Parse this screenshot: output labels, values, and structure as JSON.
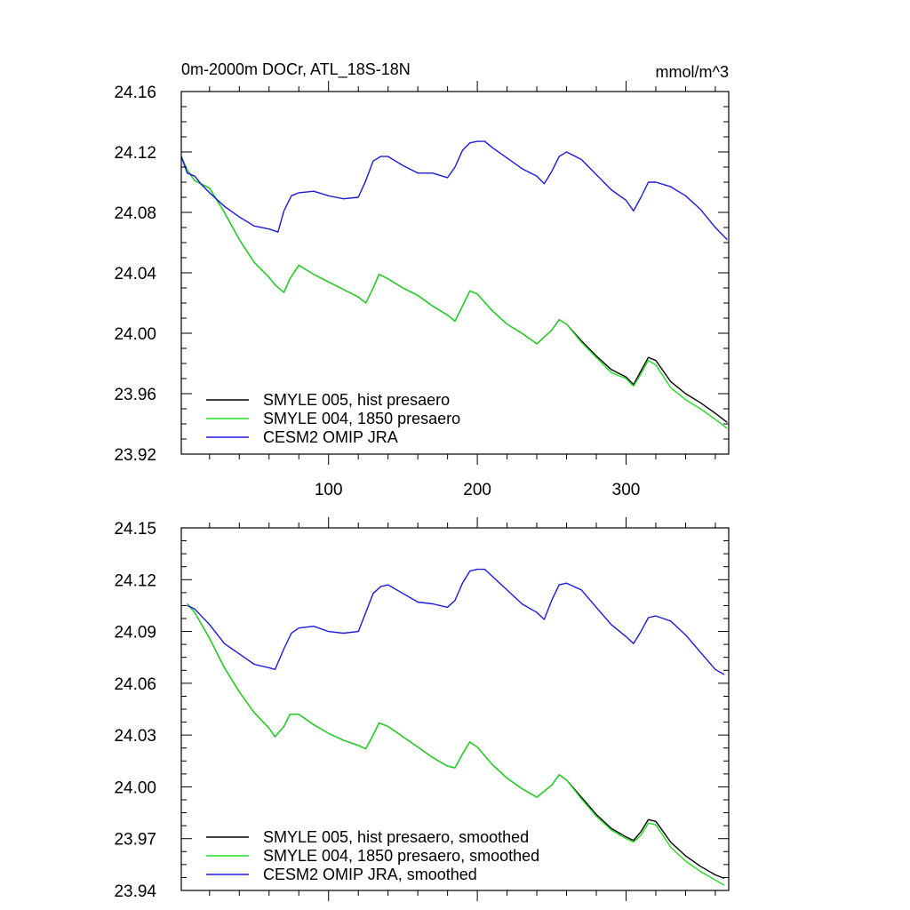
{
  "colors": {
    "black": "#000000",
    "green": "#22dd22",
    "blue": "#1a1adb"
  },
  "chart_data": [
    {
      "type": "line",
      "title": "0m-2000m DOCr, ATL_18S-18N",
      "units": "mmol/m^3",
      "xlim": [
        1,
        369
      ],
      "ylim": [
        23.92,
        24.16
      ],
      "yticks": [
        "24.16",
        "24.12",
        "24.08",
        "24.04",
        "24.00",
        "23.96",
        "23.92"
      ],
      "xticks": [
        "100",
        "200",
        "300"
      ],
      "legend_position": "bottom-left",
      "series": [
        {
          "name": "SMYLE 005, hist presaero",
          "color": "black",
          "x": [
            1,
            5,
            10,
            20,
            30,
            40,
            50,
            60,
            64,
            70,
            74,
            80,
            90,
            100,
            110,
            120,
            125,
            130,
            134,
            140,
            150,
            160,
            170,
            180,
            185,
            190,
            195,
            200,
            210,
            220,
            230,
            240,
            250,
            255,
            260,
            270,
            280,
            290,
            300,
            305,
            310,
            315,
            320,
            330,
            340,
            350,
            360,
            368
          ],
          "values": [
            24.117,
            24.108,
            24.101,
            24.096,
            24.08,
            24.062,
            24.047,
            24.037,
            24.032,
            24.027,
            24.036,
            24.045,
            24.039,
            24.034,
            24.029,
            24.024,
            24.02,
            24.03,
            24.039,
            24.036,
            24.03,
            24.025,
            24.018,
            24.012,
            24.008,
            24.018,
            24.028,
            24.026,
            24.015,
            24.006,
            24.0,
            23.993,
            24.002,
            24.009,
            24.006,
            23.995,
            23.985,
            23.976,
            23.971,
            23.966,
            23.975,
            23.984,
            23.982,
            23.968,
            23.96,
            23.954,
            23.947,
            23.941
          ]
        },
        {
          "name": "SMYLE 004, 1850 presaero",
          "color": "green",
          "x": [
            1,
            5,
            10,
            20,
            30,
            40,
            50,
            60,
            64,
            70,
            74,
            80,
            90,
            100,
            110,
            120,
            125,
            130,
            134,
            140,
            150,
            160,
            170,
            180,
            185,
            190,
            195,
            200,
            210,
            220,
            230,
            240,
            250,
            255,
            260,
            270,
            280,
            290,
            300,
            305,
            310,
            315,
            320,
            330,
            340,
            350,
            360,
            368
          ],
          "values": [
            24.117,
            24.108,
            24.101,
            24.096,
            24.08,
            24.062,
            24.047,
            24.037,
            24.032,
            24.027,
            24.036,
            24.045,
            24.039,
            24.034,
            24.029,
            24.024,
            24.02,
            24.03,
            24.039,
            24.036,
            24.03,
            24.025,
            24.018,
            24.012,
            24.008,
            24.018,
            24.028,
            24.026,
            24.015,
            24.006,
            24.0,
            23.993,
            24.002,
            24.009,
            24.006,
            23.994,
            23.984,
            23.974,
            23.97,
            23.965,
            23.973,
            23.982,
            23.979,
            23.964,
            23.956,
            23.95,
            23.943,
            23.937
          ]
        },
        {
          "name": "CESM2 OMIP JRA",
          "color": "blue",
          "x": [
            1,
            5,
            10,
            15,
            20,
            30,
            40,
            50,
            60,
            66,
            70,
            75,
            80,
            90,
            100,
            110,
            120,
            125,
            130,
            135,
            140,
            150,
            160,
            170,
            180,
            185,
            190,
            195,
            200,
            205,
            210,
            220,
            230,
            240,
            245,
            250,
            255,
            260,
            270,
            280,
            290,
            300,
            305,
            310,
            315,
            320,
            330,
            340,
            350,
            360,
            368
          ],
          "values": [
            24.117,
            24.106,
            24.104,
            24.098,
            24.093,
            24.084,
            24.077,
            24.071,
            24.069,
            24.067,
            24.081,
            24.091,
            24.093,
            24.094,
            24.091,
            24.089,
            24.09,
            24.101,
            24.114,
            24.117,
            24.117,
            24.111,
            24.106,
            24.106,
            24.103,
            24.11,
            24.121,
            24.126,
            24.127,
            24.127,
            24.123,
            24.116,
            24.109,
            24.104,
            24.099,
            24.107,
            24.117,
            24.12,
            24.115,
            24.105,
            24.095,
            24.088,
            24.081,
            24.09,
            24.1,
            24.1,
            24.097,
            24.091,
            24.082,
            24.07,
            24.062
          ]
        }
      ]
    },
    {
      "type": "line",
      "title": "",
      "xlim": [
        1,
        369
      ],
      "ylim": [
        23.94,
        24.15
      ],
      "yticks": [
        "24.15",
        "24.12",
        "24.09",
        "24.06",
        "24.03",
        "24.00",
        "23.97",
        "23.94"
      ],
      "xticks": [],
      "legend_position": "bottom-left",
      "series": [
        {
          "name": "SMYLE 005, hist presaero, smoothed",
          "color": "black",
          "x": [
            5,
            10,
            20,
            30,
            40,
            50,
            60,
            64,
            70,
            74,
            80,
            90,
            100,
            110,
            120,
            125,
            130,
            134,
            140,
            150,
            160,
            170,
            180,
            185,
            190,
            195,
            200,
            210,
            220,
            230,
            240,
            250,
            255,
            260,
            270,
            280,
            290,
            300,
            305,
            310,
            315,
            320,
            330,
            340,
            350,
            360,
            366
          ],
          "values": [
            24.106,
            24.101,
            24.086,
            24.069,
            24.055,
            24.043,
            24.034,
            24.029,
            24.035,
            24.042,
            24.042,
            24.036,
            24.031,
            24.027,
            24.024,
            24.022,
            24.03,
            24.037,
            24.035,
            24.029,
            24.023,
            24.017,
            24.012,
            24.011,
            24.019,
            24.026,
            24.023,
            24.013,
            24.005,
            23.999,
            23.994,
            24.001,
            24.007,
            24.004,
            23.994,
            23.984,
            23.976,
            23.971,
            23.969,
            23.974,
            23.981,
            23.98,
            23.968,
            23.96,
            23.954,
            23.949,
            23.947
          ]
        },
        {
          "name": "SMYLE 004, 1850 presaero, smoothed",
          "color": "green",
          "x": [
            5,
            10,
            20,
            30,
            40,
            50,
            60,
            64,
            70,
            74,
            80,
            90,
            100,
            110,
            120,
            125,
            130,
            134,
            140,
            150,
            160,
            170,
            180,
            185,
            190,
            195,
            200,
            210,
            220,
            230,
            240,
            250,
            255,
            260,
            270,
            280,
            290,
            300,
            305,
            310,
            315,
            320,
            330,
            340,
            350,
            360,
            366
          ],
          "values": [
            24.106,
            24.101,
            24.086,
            24.069,
            24.055,
            24.043,
            24.034,
            24.029,
            24.035,
            24.042,
            24.042,
            24.036,
            24.031,
            24.027,
            24.024,
            24.022,
            24.03,
            24.037,
            24.035,
            24.029,
            24.023,
            24.017,
            24.012,
            24.011,
            24.019,
            24.026,
            24.023,
            24.013,
            24.005,
            23.999,
            23.994,
            24.001,
            24.007,
            24.004,
            23.993,
            23.983,
            23.975,
            23.97,
            23.968,
            23.972,
            23.979,
            23.978,
            23.965,
            23.957,
            23.951,
            23.946,
            23.943
          ]
        },
        {
          "name": "CESM2 OMIP JRA, smoothed",
          "color": "blue",
          "x": [
            5,
            10,
            20,
            30,
            40,
            50,
            60,
            64,
            70,
            75,
            80,
            90,
            100,
            110,
            120,
            125,
            130,
            135,
            140,
            150,
            160,
            170,
            180,
            185,
            190,
            195,
            200,
            205,
            210,
            220,
            230,
            240,
            245,
            250,
            255,
            260,
            270,
            280,
            290,
            300,
            305,
            310,
            315,
            320,
            330,
            340,
            350,
            360,
            366
          ],
          "values": [
            24.105,
            24.103,
            24.094,
            24.083,
            24.077,
            24.071,
            24.069,
            24.068,
            24.08,
            24.089,
            24.092,
            24.093,
            24.09,
            24.089,
            24.09,
            24.101,
            24.112,
            24.116,
            24.117,
            24.112,
            24.107,
            24.106,
            24.104,
            24.108,
            24.118,
            24.125,
            24.126,
            24.126,
            24.122,
            24.114,
            24.106,
            24.101,
            24.097,
            24.108,
            24.117,
            24.118,
            24.114,
            24.104,
            24.094,
            24.087,
            24.083,
            24.09,
            24.098,
            24.099,
            24.096,
            24.088,
            24.078,
            24.068,
            24.065
          ]
        }
      ]
    }
  ]
}
